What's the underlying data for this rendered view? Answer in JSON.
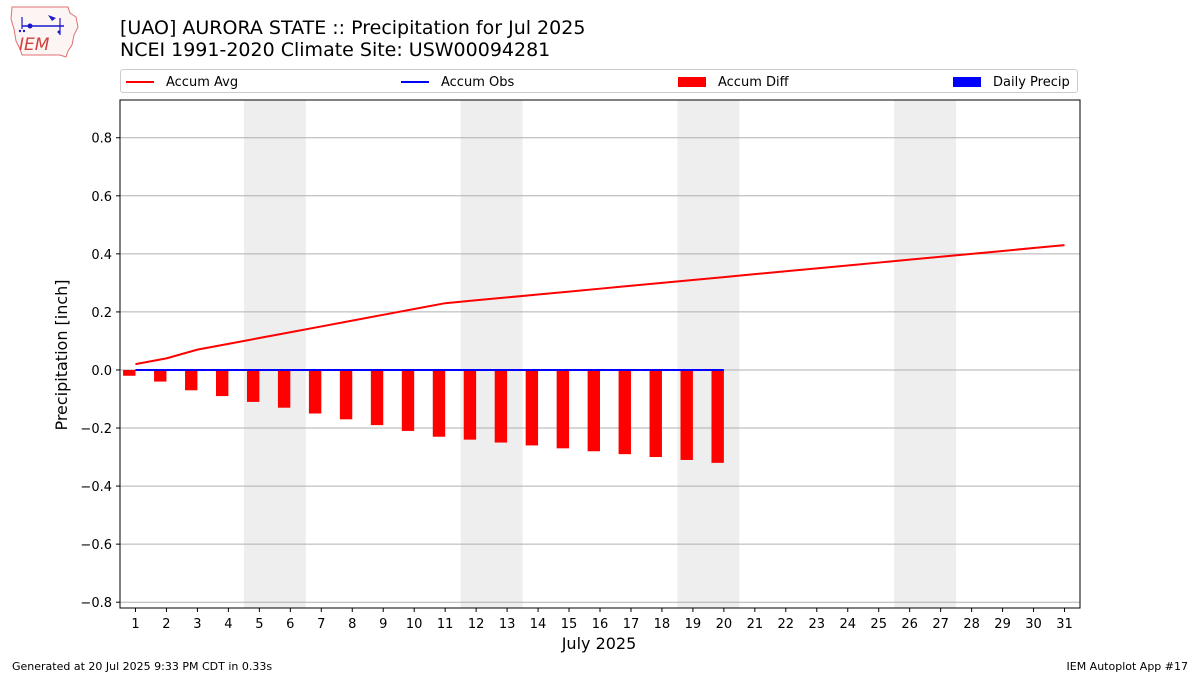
{
  "chart_data": {
    "type": "bar",
    "title": "[UAO] AURORA STATE :: Precipitation for Jul 2025",
    "subtitle": "NCEI 1991-2020 Climate Site: USW00094281",
    "xlabel": "July 2025",
    "ylabel": "Precipitation [inch]",
    "xlim": [
      0.5,
      31.5
    ],
    "ylim": [
      -0.82,
      0.93
    ],
    "yticks": [
      -0.8,
      -0.6,
      -0.4,
      -0.2,
      0.0,
      0.2,
      0.4,
      0.6,
      0.8
    ],
    "ytick_labels": [
      "−0.8",
      "−0.6",
      "−0.4",
      "−0.2",
      "0.0",
      "0.2",
      "0.4",
      "0.6",
      "0.8"
    ],
    "x": [
      1,
      2,
      3,
      4,
      5,
      6,
      7,
      8,
      9,
      10,
      11,
      12,
      13,
      14,
      15,
      16,
      17,
      18,
      19,
      20,
      21,
      22,
      23,
      24,
      25,
      26,
      27,
      28,
      29,
      30,
      31
    ],
    "grid": "horizontal",
    "legend_position": "top",
    "weekend_shading": [
      [
        4.5,
        6.5
      ],
      [
        11.5,
        13.5
      ],
      [
        18.5,
        20.5
      ],
      [
        25.5,
        27.5
      ]
    ],
    "series": [
      {
        "name": "Accum Avg",
        "kind": "line",
        "color": "#ff0000",
        "x": [
          1,
          2,
          3,
          4,
          5,
          6,
          7,
          8,
          9,
          10,
          11,
          12,
          13,
          14,
          15,
          16,
          17,
          18,
          19,
          20,
          21,
          22,
          23,
          24,
          25,
          26,
          27,
          28,
          29,
          30,
          31
        ],
        "values": [
          0.02,
          0.04,
          0.07,
          0.09,
          0.11,
          0.13,
          0.15,
          0.17,
          0.19,
          0.21,
          0.23,
          0.24,
          0.25,
          0.26,
          0.27,
          0.28,
          0.29,
          0.3,
          0.31,
          0.32,
          0.33,
          0.34,
          0.35,
          0.36,
          0.37,
          0.38,
          0.39,
          0.4,
          0.41,
          0.42,
          0.43
        ]
      },
      {
        "name": "Accum Obs",
        "kind": "line",
        "color": "#0000ff",
        "x": [
          1,
          2,
          3,
          4,
          5,
          6,
          7,
          8,
          9,
          10,
          11,
          12,
          13,
          14,
          15,
          16,
          17,
          18,
          19,
          20
        ],
        "values": [
          0,
          0,
          0,
          0,
          0,
          0,
          0,
          0,
          0,
          0,
          0,
          0,
          0,
          0,
          0,
          0,
          0,
          0,
          0,
          0
        ]
      },
      {
        "name": "Accum Diff",
        "kind": "bar",
        "color": "#ff0000",
        "x": [
          1,
          2,
          3,
          4,
          5,
          6,
          7,
          8,
          9,
          10,
          11,
          12,
          13,
          14,
          15,
          16,
          17,
          18,
          19,
          20
        ],
        "values": [
          -0.02,
          -0.04,
          -0.07,
          -0.09,
          -0.11,
          -0.13,
          -0.15,
          -0.17,
          -0.19,
          -0.21,
          -0.23,
          -0.24,
          -0.25,
          -0.26,
          -0.27,
          -0.28,
          -0.29,
          -0.3,
          -0.31,
          -0.32
        ]
      },
      {
        "name": "Daily Precip",
        "kind": "bar",
        "color": "#0000ff",
        "x": [
          1,
          2,
          3,
          4,
          5,
          6,
          7,
          8,
          9,
          10,
          11,
          12,
          13,
          14,
          15,
          16,
          17,
          18,
          19,
          20
        ],
        "values": [
          0,
          0,
          0,
          0,
          0,
          0,
          0,
          0,
          0,
          0,
          0,
          0,
          0,
          0,
          0,
          0,
          0,
          0,
          0,
          0
        ]
      }
    ]
  },
  "logo": {
    "text": "IEM"
  },
  "legend": {
    "items": [
      {
        "label": "Accum Avg",
        "style": "line",
        "color": "#ff0000"
      },
      {
        "label": "Accum Obs",
        "style": "line",
        "color": "#0000ff"
      },
      {
        "label": "Accum Diff",
        "style": "box",
        "color": "#ff0000"
      },
      {
        "label": "Daily Precip",
        "style": "box",
        "color": "#0000ff"
      }
    ]
  },
  "footer": {
    "left": "Generated at 20 Jul 2025 9:33 PM CDT in 0.33s",
    "right": "IEM Autoplot App #17"
  }
}
